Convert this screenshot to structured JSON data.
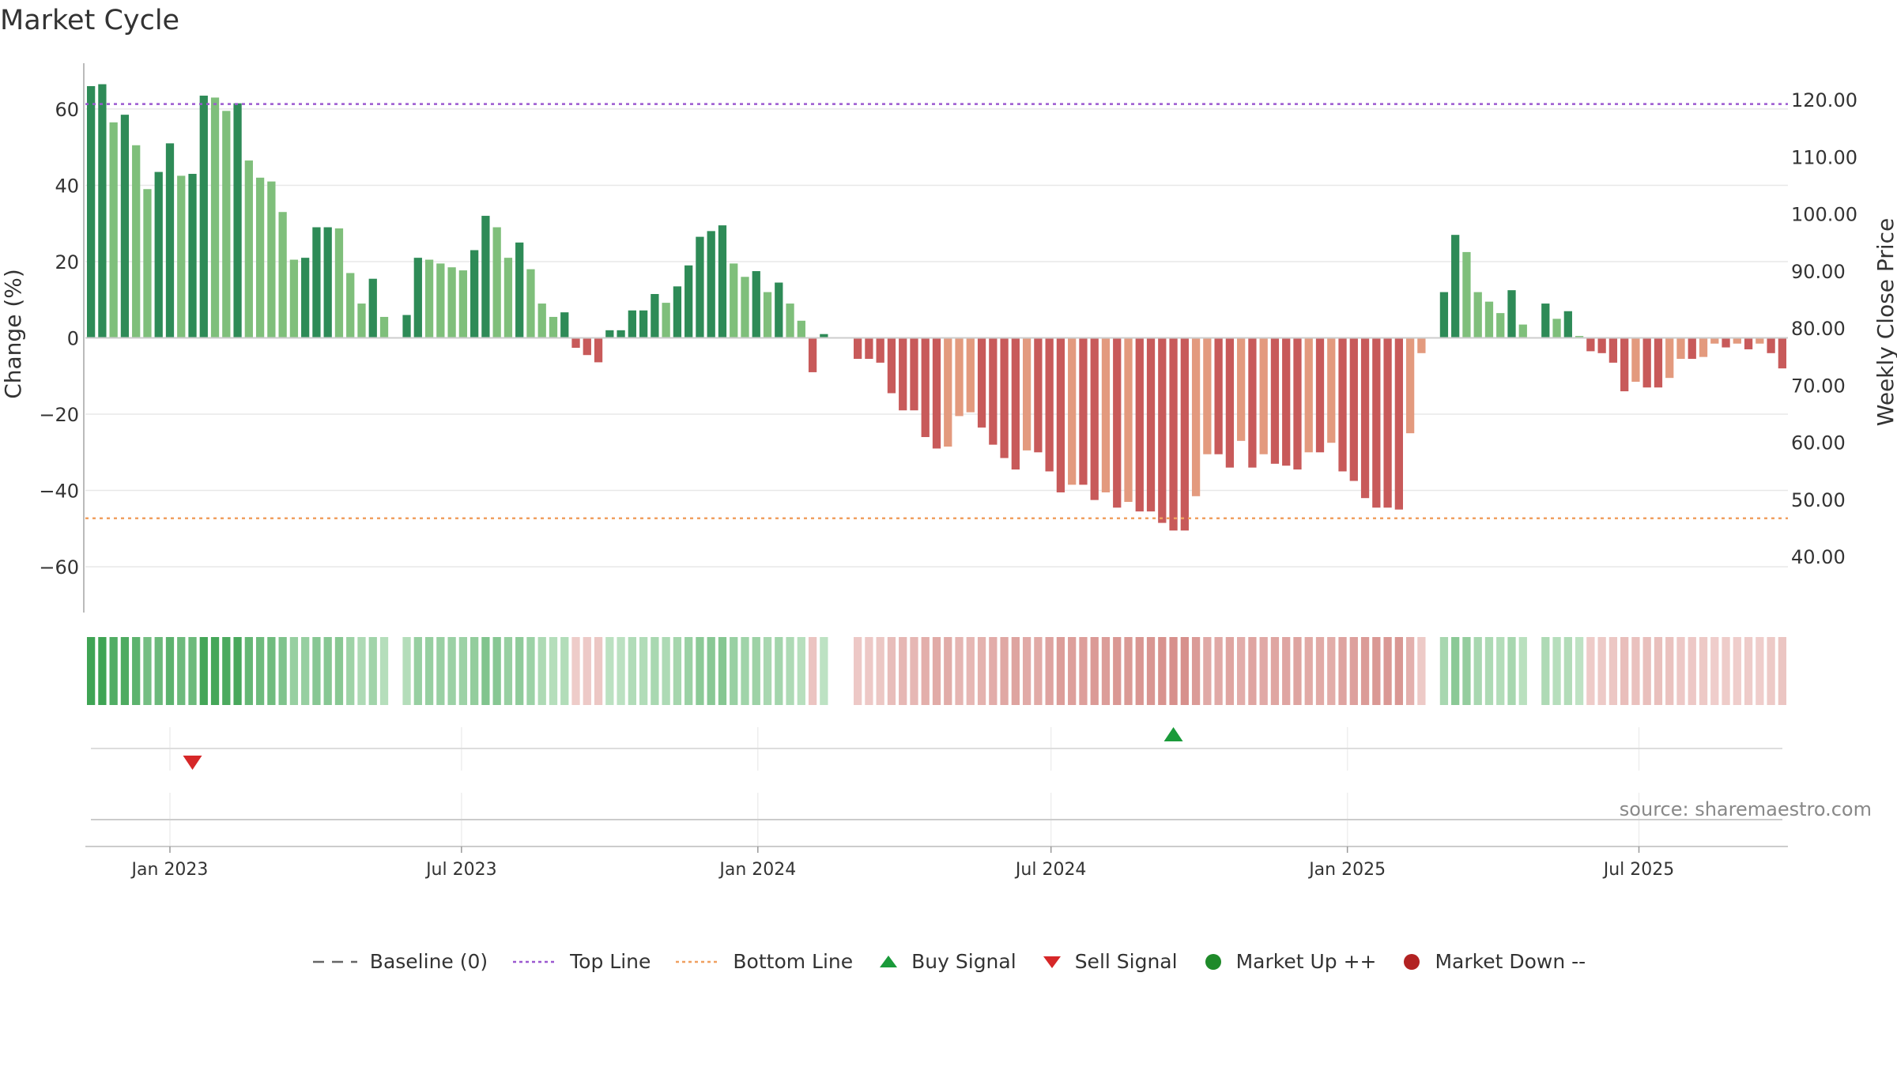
{
  "title": "Market Cycle",
  "source": "source: sharemaestro.com",
  "colors": {
    "up_strong": "#2e8b57",
    "up_light": "#7fbf7b",
    "down_strong": "#c85a5a",
    "down_light": "#e39a7e",
    "top_line": "#9b59d0",
    "bottom_line": "#f0a060",
    "buy": "#1a9a3a",
    "sell": "#d62728",
    "market_up": "#1f8a2a",
    "market_down": "#b22222",
    "grid": "#e8e8e8",
    "axis_text": "#333333"
  },
  "legend": [
    {
      "label": "Baseline (0)",
      "type": "dash",
      "color": "#666666"
    },
    {
      "label": "Top Line",
      "type": "dot",
      "color": "#9b59d0"
    },
    {
      "label": "Bottom Line",
      "type": "dot",
      "color": "#f0a060"
    },
    {
      "label": "Buy Signal",
      "type": "tri-up",
      "color": "#1a9a3a"
    },
    {
      "label": "Sell Signal",
      "type": "tri-down",
      "color": "#d62728"
    },
    {
      "label": "Market Up ++",
      "type": "circle",
      "color": "#1f8a2a"
    },
    {
      "label": "Market Down --",
      "type": "circle",
      "color": "#b22222"
    }
  ],
  "chart_data": {
    "type": "bar",
    "title": "Market Cycle",
    "ylabel": "Change (%)",
    "y2label": "Weekly Close Price",
    "ylim": [
      -72,
      72
    ],
    "y_ticks": [
      60,
      40,
      20,
      0,
      -20,
      -40,
      -60
    ],
    "y_tick_labels": [
      "60",
      "40",
      "20",
      "0",
      "−20",
      "−40",
      "−60"
    ],
    "y2lim": [
      30.2,
      126.4
    ],
    "y2_ticks": [
      120,
      110,
      100,
      90,
      80,
      70,
      60,
      50,
      40
    ],
    "y2_tick_labels": [
      "120.00",
      "110.00",
      "100.00",
      "90.00",
      "80.00",
      "70.00",
      "60.00",
      "50.00",
      "40.00"
    ],
    "x_ticks": [
      "2023-01-01",
      "2023-07-01",
      "2024-01-01",
      "2024-07-01",
      "2025-01-01",
      "2025-07-01"
    ],
    "x_tick_labels": [
      "Jan 2023",
      "Jul 2023",
      "Jan 2024",
      "Jul 2024",
      "Jan 2025",
      "Jul 2025"
    ],
    "x_start": "2022-11-13",
    "week_dates_note": "one bar per week starting 2022-11-13",
    "top_line": 61.3,
    "bottom_line": -47.3,
    "legend_position": "bottom",
    "grid": true,
    "values": [
      66,
      66.5,
      56.5,
      58.5,
      50.5,
      39,
      43.5,
      51,
      42.5,
      43,
      63.5,
      63,
      59.5,
      61.5,
      46.5,
      42,
      41,
      33,
      20.5,
      21,
      29,
      29,
      28.7,
      17,
      9,
      15.5,
      5.5,
      0,
      6,
      21,
      20.5,
      19.5,
      18.5,
      17.7,
      23,
      32,
      29,
      21,
      25,
      18,
      9,
      5.5,
      6.7,
      -2.6,
      -4.5,
      -6.4,
      2,
      2,
      7.2,
      7.2,
      11.5,
      9.2,
      13.5,
      19,
      26.5,
      28,
      29.5,
      19.5,
      16,
      17.5,
      12,
      14.5,
      9,
      4.5,
      -9,
      1,
      0,
      0,
      -5.5,
      -5.5,
      -6.5,
      -14.5,
      -19,
      -19,
      -26,
      -29,
      -28.5,
      -20.5,
      -19.5,
      -23.5,
      -28,
      -31.5,
      -34.5,
      -29.5,
      -30,
      -35,
      -40.5,
      -38.5,
      -38.5,
      -42.5,
      -40.5,
      -44.5,
      -43,
      -45.5,
      -45.5,
      -48.5,
      -50.5,
      -50.5,
      -41.5,
      -30.5,
      -30.5,
      -34,
      -27,
      -34,
      -30.5,
      -33,
      -33.5,
      -34.5,
      -30,
      -30,
      -27.5,
      -35,
      -37.5,
      -42,
      -44.5,
      -44.5,
      -45,
      -25,
      -4,
      0,
      12,
      27,
      22.5,
      12,
      9.5,
      6.5,
      12.5,
      3.5,
      0,
      9,
      5,
      7,
      0.5,
      -3.5,
      -4,
      -6.5,
      -14,
      -11.5,
      -13,
      -13,
      -10.5,
      -5.5,
      -5.5,
      -5,
      -1.5,
      -2.5,
      -1.5,
      -3,
      -1.5,
      -4,
      -8
    ],
    "signals": [
      {
        "type": "sell",
        "date": "2023-01-15"
      },
      {
        "type": "buy",
        "date": "2024-09-15"
      }
    ]
  }
}
